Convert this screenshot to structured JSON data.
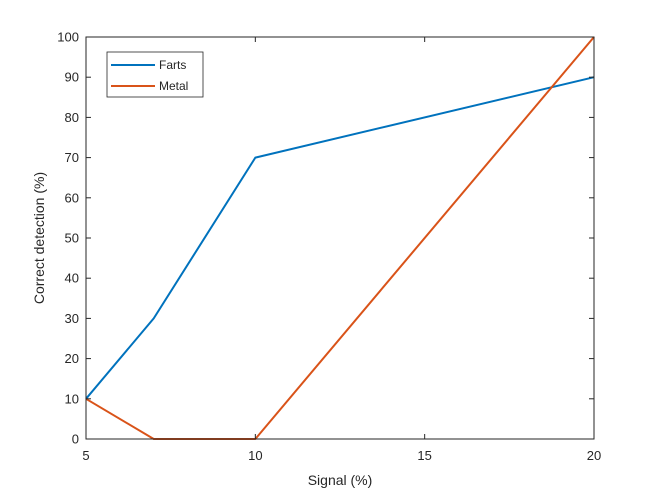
{
  "chart_data": {
    "type": "line",
    "xlabel": "Signal (%)",
    "ylabel": "Correct detection (%)",
    "xlim": [
      5,
      20
    ],
    "ylim": [
      0,
      100
    ],
    "xticks": [
      5,
      10,
      15,
      20
    ],
    "yticks": [
      0,
      10,
      20,
      30,
      40,
      50,
      60,
      70,
      80,
      90,
      100
    ],
    "grid": false,
    "legend_position": "top-left",
    "series": [
      {
        "name": "Farts",
        "color": "#0072BD",
        "x": [
          5,
          7,
          10,
          20
        ],
        "y": [
          10,
          30,
          70,
          90
        ]
      },
      {
        "name": "Metal",
        "color": "#D95319",
        "x": [
          5,
          7,
          10,
          20
        ],
        "y": [
          10,
          0,
          0,
          100
        ]
      }
    ]
  }
}
